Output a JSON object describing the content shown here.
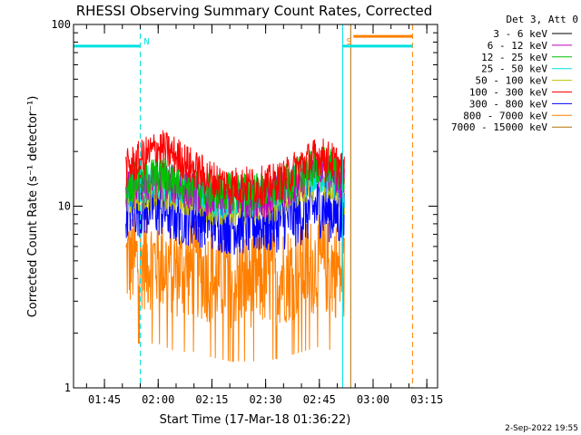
{
  "chart_data": {
    "type": "line",
    "title": "RHESSI Observing Summary Count Rates, Corrected",
    "xlabel": "Start Time (17-Mar-18 01:36:22)",
    "ylabel": "Corrected Count Rate (s⁻¹ detector⁻¹)",
    "y_scale": "log",
    "ylim": [
      1,
      100
    ],
    "xlim": [
      "01:36:22",
      "03:18:00"
    ],
    "y_ticks": [
      "1",
      "10",
      "100"
    ],
    "x_ticks": [
      "01:45",
      "02:00",
      "02:15",
      "02:30",
      "02:45",
      "03:00",
      "03:15"
    ],
    "legend_header": "Det 3, Att 0",
    "legend_position": "top-right",
    "x": [
      "01:51",
      "01:55",
      "02:00",
      "02:05",
      "02:10",
      "02:15",
      "02:20",
      "02:25",
      "02:30",
      "02:35",
      "02:40",
      "02:45",
      "02:50",
      "02:52"
    ],
    "series": [
      {
        "name": "3 - 6 keV",
        "color": "#000000",
        "values": [
          null,
          null,
          null,
          null,
          null,
          null,
          null,
          null,
          null,
          null,
          null,
          null,
          null,
          null
        ]
      },
      {
        "name": "6 - 12 keV",
        "color": "#c000c0",
        "values": [
          12,
          13,
          14,
          13,
          12,
          11,
          11,
          11,
          11,
          12,
          14,
          16,
          15,
          13
        ]
      },
      {
        "name": "12 - 25 keV",
        "color": "#00c000",
        "values": [
          13,
          14,
          15,
          14,
          13,
          12,
          12,
          12,
          12,
          13,
          15,
          17,
          16,
          14
        ]
      },
      {
        "name": "25 - 50 keV",
        "color": "#00e0e0",
        "values": [
          12,
          13,
          14,
          13,
          12,
          11,
          11,
          11,
          11,
          12,
          14,
          15,
          14,
          12
        ]
      },
      {
        "name": "50 - 100 keV",
        "color": "#c0c000",
        "values": [
          11,
          12,
          12,
          12,
          11,
          10,
          10,
          10,
          10,
          11,
          13,
          14,
          13,
          11
        ]
      },
      {
        "name": "100 - 300 keV",
        "color": "#ff0000",
        "values": [
          16,
          18,
          21,
          19,
          16,
          14,
          13,
          13,
          13,
          14,
          17,
          19,
          17,
          15
        ]
      },
      {
        "name": "300 - 800 keV",
        "color": "#0000ff",
        "values": [
          10,
          10,
          10,
          9,
          9,
          8.5,
          8,
          8,
          8,
          8.5,
          9,
          10,
          9,
          8
        ]
      },
      {
        "name": "800 - 7000 keV",
        "color": "#ff8000",
        "values": [
          5,
          5,
          5,
          4.5,
          4.5,
          4.2,
          4,
          4,
          4,
          4.2,
          4.5,
          4.8,
          4.5,
          4
        ]
      },
      {
        "name": "7000 - 15000 keV",
        "color": "#b07000",
        "values": [
          null,
          null,
          null,
          null,
          null,
          null,
          null,
          null,
          null,
          null,
          null,
          null,
          null,
          null
        ]
      }
    ],
    "intervals": [
      {
        "label": "N",
        "color": "#00e0e0",
        "start": "01:36:22",
        "end": "01:55:00",
        "y": 76
      },
      {
        "label": "S",
        "color": "#00e0e0",
        "start": "02:51:30",
        "end": "03:11:00",
        "y": 76
      },
      {
        "label": "",
        "color": "#ff8000",
        "start": "02:54:30",
        "end": "03:11:00",
        "y": 86
      }
    ],
    "markers": [
      {
        "time": "01:55:00",
        "color": "#00e0e0",
        "style": "dashed"
      },
      {
        "time": "02:51:30",
        "color": "#00e0e0",
        "style": "solid"
      },
      {
        "time": "02:53:45",
        "color": "#b07000",
        "style": "solid"
      },
      {
        "time": "03:11:00",
        "color": "#ff8000",
        "style": "dashed"
      }
    ],
    "grid": false
  },
  "footer_date": "2-Sep-2022 19:55"
}
